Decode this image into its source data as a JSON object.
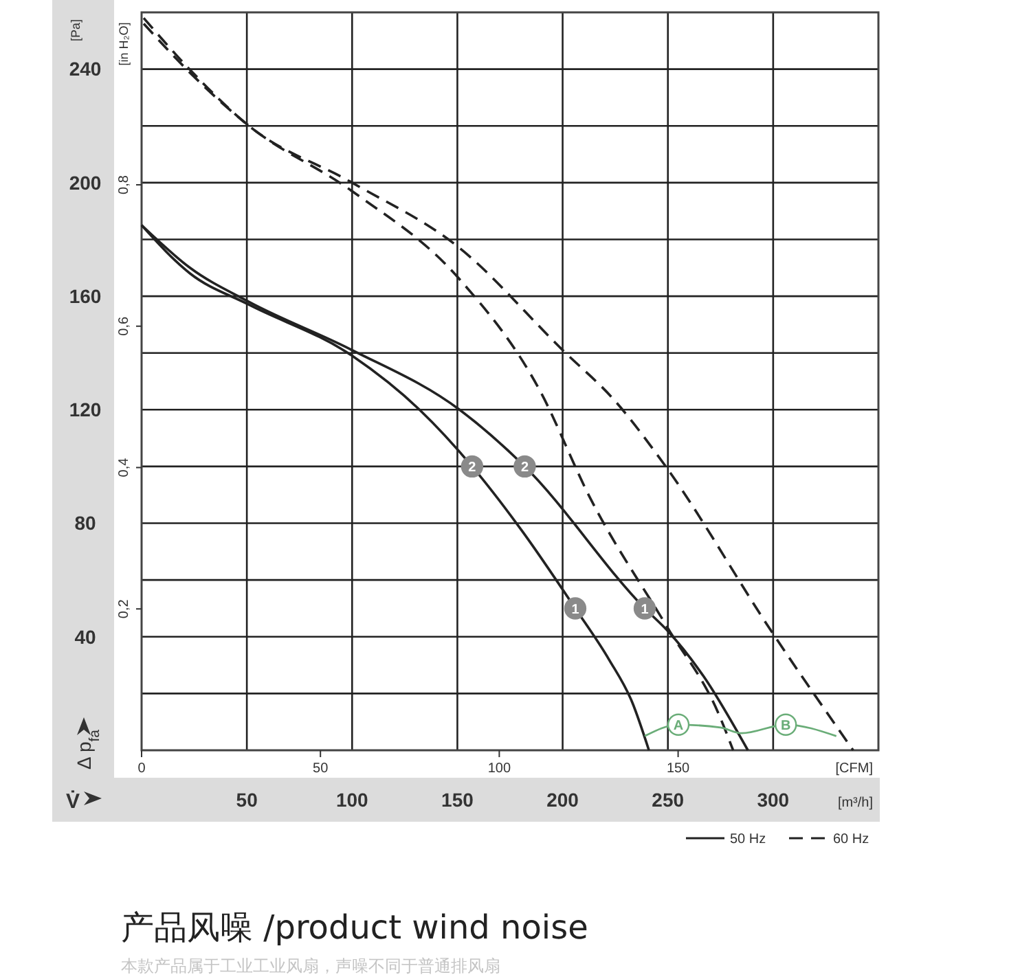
{
  "chart_data": {
    "type": "line",
    "xlabel": "[m³/h]",
    "ylabel": "[Pa]",
    "y2label": "[in H₂O]",
    "x2label": "[CFM]",
    "xlim": [
      0,
      350
    ],
    "xticks": [
      50,
      100,
      150,
      200,
      250,
      300
    ],
    "ylim": [
      0,
      260
    ],
    "yticks": [
      {
        "value": 20,
        "label": null
      },
      40,
      {
        "value": 60,
        "label": null
      },
      80,
      {
        "value": 100,
        "label": null
      },
      120,
      {
        "value": 140,
        "label": null
      },
      160,
      {
        "value": 180,
        "label": null
      },
      200,
      {
        "value": 220,
        "label": null
      },
      240
    ],
    "x2lim": [
      0,
      206
    ],
    "x2ticks": [
      0,
      50,
      100,
      150
    ],
    "y2lim": [
      0,
      1.044
    ],
    "y2ticks": [
      {
        "value": 0.2,
        "label": "0,2"
      },
      {
        "value": 0.4,
        "label": "0,4"
      },
      {
        "value": 0.6,
        "label": "0,6"
      },
      {
        "value": 0.8,
        "label": "0,8"
      }
    ],
    "grid": true,
    "legend": "bottom right",
    "series": [
      {
        "name": "50 Hz",
        "color": "#222222",
        "line_style": "solid",
        "x": [
          0,
          23,
          51,
          100,
          132,
          157,
          181,
          206,
          222,
          233,
          241
        ],
        "values": [
          185,
          168,
          157,
          139,
          120,
          100,
          77,
          50,
          32,
          17,
          0
        ]
      },
      {
        "color": "#222222",
        "line_style": "solid",
        "x": [
          0,
          23,
          51,
          100,
          151,
          182,
          239,
          250,
          267,
          288
        ],
        "values": [
          185,
          170,
          158,
          141,
          120,
          100,
          50,
          42,
          26,
          0
        ]
      },
      {
        "name": "60 Hz",
        "color": "#222222",
        "line_style": "dashed",
        "x": [
          1,
          24,
          51,
          100,
          151,
          189,
          213,
          250,
          274,
          281
        ],
        "values": [
          256,
          238,
          220,
          197,
          166,
          127,
          89,
          43,
          13,
          0
        ]
      },
      {
        "color": "#222222",
        "line_style": "dashed",
        "x": [
          1,
          24,
          51,
          100,
          151,
          200,
          225,
          248,
          300,
          338
        ],
        "values": [
          258,
          239,
          220,
          200,
          177,
          141,
          123,
          101,
          41,
          0
        ]
      },
      {
        "color": "#6aad78",
        "line_style": "solid",
        "x": [
          239,
          255,
          275,
          285,
          306,
          330
        ],
        "values": [
          5,
          9,
          8,
          6,
          9,
          5
        ]
      }
    ],
    "annotations": [
      {
        "text": "2",
        "x": 157,
        "y": 100
      },
      {
        "text": "2",
        "x": 182,
        "y": 100
      },
      {
        "text": "1",
        "x": 206,
        "y": 50
      },
      {
        "text": "1",
        "x": 239,
        "y": 50
      },
      {
        "text": "A",
        "x": 255,
        "y": 9
      },
      {
        "text": "B",
        "x": 306,
        "y": 9
      },
      "V̇",
      "Δ p$_{fa}$",
      "产品风噪 /product wind noise",
      "本款产品属于工业工业风扇，声噪不同于普通排风扇"
    ]
  }
}
